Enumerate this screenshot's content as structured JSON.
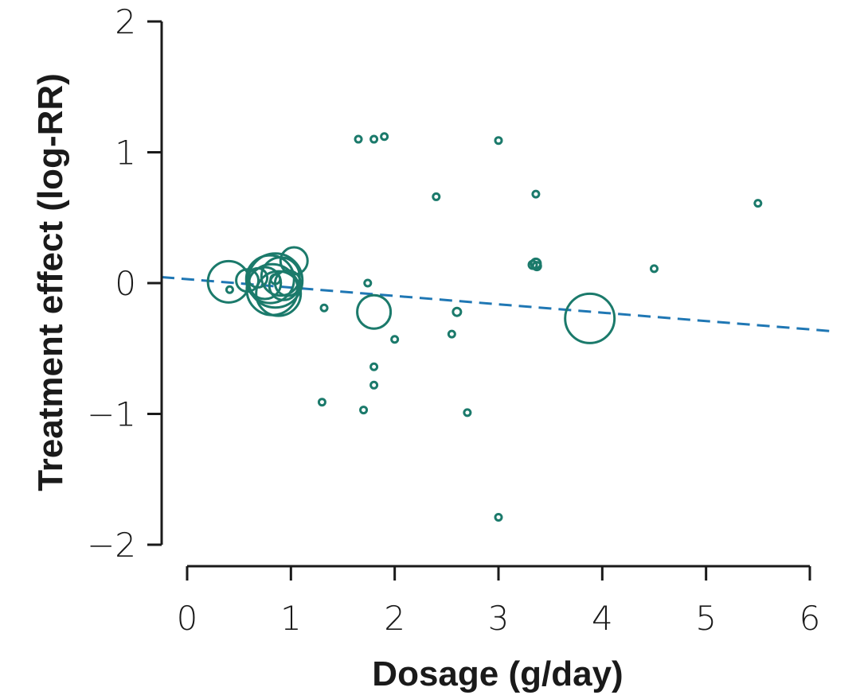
{
  "chart_data": {
    "type": "scatter",
    "title": "",
    "xlabel": "Dosage (g/day)",
    "ylabel": "Treatment effect (log-RR)",
    "xlim": [
      0,
      6
    ],
    "ylim": [
      -2,
      2
    ],
    "xticks": [
      0,
      1,
      2,
      3,
      4,
      5,
      6
    ],
    "yticks": [
      2,
      1,
      0,
      -1,
      -2
    ],
    "xtick_labels": [
      "0",
      "1",
      "2",
      "3",
      "4",
      "5",
      "6"
    ],
    "ytick_labels": [
      "2",
      "1",
      "0",
      "−1",
      "−2"
    ],
    "point_color": "#1b7a6b",
    "trend_color": "#1f77b4",
    "marker_note": "circle size proportional to study weight",
    "trendline": {
      "intercept": 0.03,
      "slope": -0.064,
      "style": "dashed"
    },
    "points": [
      {
        "x": 0.4,
        "y": 0.01,
        "weight": 26
      },
      {
        "x": 0.41,
        "y": -0.05,
        "weight": 4
      },
      {
        "x": 0.58,
        "y": 0.02,
        "weight": 14
      },
      {
        "x": 0.68,
        "y": 0.04,
        "weight": 12
      },
      {
        "x": 0.75,
        "y": 0.0,
        "weight": 20
      },
      {
        "x": 0.8,
        "y": 0.03,
        "weight": 30
      },
      {
        "x": 0.82,
        "y": -0.05,
        "weight": 32
      },
      {
        "x": 0.85,
        "y": 0.02,
        "weight": 34
      },
      {
        "x": 0.85,
        "y": 0.03,
        "weight": 6
      },
      {
        "x": 0.88,
        "y": -0.08,
        "weight": 28
      },
      {
        "x": 0.9,
        "y": 0.05,
        "weight": 24
      },
      {
        "x": 0.93,
        "y": -0.02,
        "weight": 18
      },
      {
        "x": 0.97,
        "y": 0.0,
        "weight": 16
      },
      {
        "x": 1.03,
        "y": 0.17,
        "weight": 17
      },
      {
        "x": 1.32,
        "y": -0.19,
        "weight": 4
      },
      {
        "x": 1.3,
        "y": -0.91,
        "weight": 4
      },
      {
        "x": 1.65,
        "y": 1.1,
        "weight": 4
      },
      {
        "x": 1.7,
        "y": -0.97,
        "weight": 4
      },
      {
        "x": 1.74,
        "y": 0.0,
        "weight": 4
      },
      {
        "x": 1.8,
        "y": 1.1,
        "weight": 4
      },
      {
        "x": 1.8,
        "y": -0.64,
        "weight": 4
      },
      {
        "x": 1.8,
        "y": -0.78,
        "weight": 4
      },
      {
        "x": 1.8,
        "y": -0.22,
        "weight": 21
      },
      {
        "x": 1.9,
        "y": 1.12,
        "weight": 4
      },
      {
        "x": 2.0,
        "y": -0.43,
        "weight": 4
      },
      {
        "x": 2.4,
        "y": 0.66,
        "weight": 4
      },
      {
        "x": 2.55,
        "y": -0.39,
        "weight": 4
      },
      {
        "x": 2.6,
        "y": -0.22,
        "weight": 5
      },
      {
        "x": 2.7,
        "y": -0.99,
        "weight": 4
      },
      {
        "x": 3.0,
        "y": 1.09,
        "weight": 4
      },
      {
        "x": 3.0,
        "y": -1.79,
        "weight": 4
      },
      {
        "x": 3.33,
        "y": 0.14,
        "weight": 5
      },
      {
        "x": 3.36,
        "y": 0.15,
        "weight": 6
      },
      {
        "x": 3.37,
        "y": 0.13,
        "weight": 5
      },
      {
        "x": 3.36,
        "y": 0.68,
        "weight": 4
      },
      {
        "x": 3.88,
        "y": -0.27,
        "weight": 31
      },
      {
        "x": 4.5,
        "y": 0.11,
        "weight": 4
      },
      {
        "x": 5.5,
        "y": 0.61,
        "weight": 4
      }
    ]
  }
}
